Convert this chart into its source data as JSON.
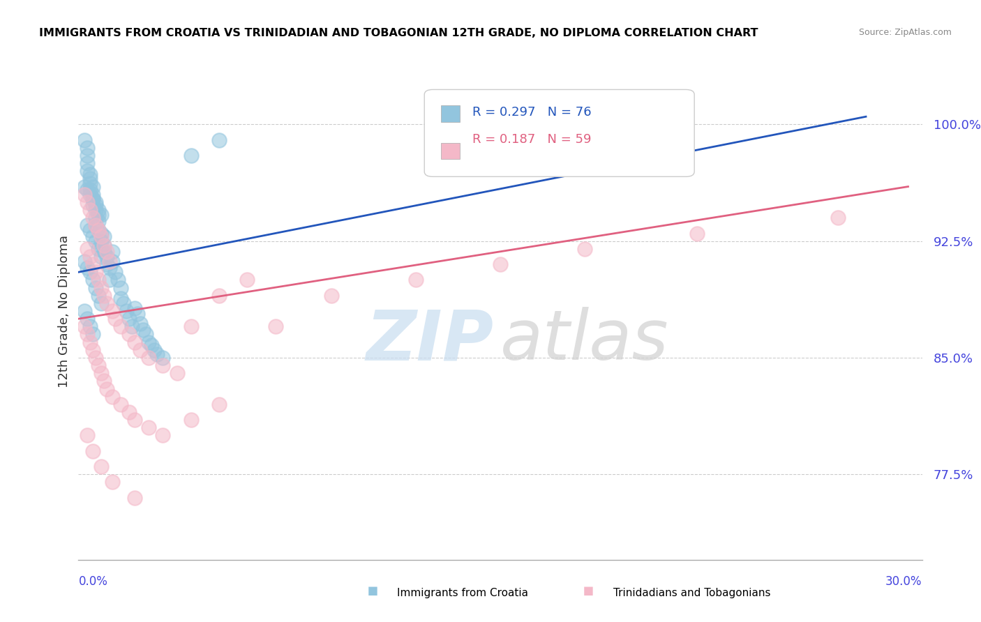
{
  "title": "IMMIGRANTS FROM CROATIA VS TRINIDADIAN AND TOBAGONIAN 12TH GRADE, NO DIPLOMA CORRELATION CHART",
  "source": "Source: ZipAtlas.com",
  "ylabel": "12th Grade, No Diploma",
  "ytick_labels": [
    "77.5%",
    "85.0%",
    "92.5%",
    "100.0%"
  ],
  "ytick_values": [
    0.775,
    0.85,
    0.925,
    1.0
  ],
  "xlim": [
    0.0,
    0.3
  ],
  "ylim": [
    0.72,
    1.04
  ],
  "legend_line1": "R = 0.297   N = 76",
  "legend_line2": "R = 0.187   N = 59",
  "blue_color": "#92c5de",
  "pink_color": "#f4b8c8",
  "blue_line_color": "#2255bb",
  "pink_line_color": "#e06080",
  "blue_scatter_x": [
    0.002,
    0.003,
    0.003,
    0.003,
    0.003,
    0.004,
    0.004,
    0.004,
    0.004,
    0.005,
    0.005,
    0.005,
    0.005,
    0.006,
    0.006,
    0.006,
    0.006,
    0.007,
    0.007,
    0.007,
    0.008,
    0.008,
    0.008,
    0.009,
    0.009,
    0.009,
    0.01,
    0.01,
    0.011,
    0.011,
    0.012,
    0.012,
    0.013,
    0.014,
    0.015,
    0.015,
    0.016,
    0.017,
    0.018,
    0.019,
    0.02,
    0.021,
    0.022,
    0.023,
    0.024,
    0.025,
    0.026,
    0.027,
    0.028,
    0.03,
    0.002,
    0.003,
    0.004,
    0.005,
    0.006,
    0.007,
    0.008,
    0.003,
    0.004,
    0.005,
    0.006,
    0.007,
    0.008,
    0.002,
    0.003,
    0.004,
    0.005,
    0.006,
    0.007,
    0.008,
    0.002,
    0.003,
    0.004,
    0.005,
    0.04,
    0.05
  ],
  "blue_scatter_y": [
    0.99,
    0.985,
    0.98,
    0.975,
    0.97,
    0.968,
    0.965,
    0.962,
    0.958,
    0.96,
    0.955,
    0.952,
    0.948,
    0.95,
    0.945,
    0.94,
    0.935,
    0.942,
    0.938,
    0.932,
    0.93,
    0.925,
    0.92,
    0.928,
    0.922,
    0.918,
    0.915,
    0.91,
    0.908,
    0.9,
    0.918,
    0.912,
    0.905,
    0.9,
    0.895,
    0.888,
    0.885,
    0.88,
    0.875,
    0.87,
    0.882,
    0.878,
    0.872,
    0.868,
    0.865,
    0.86,
    0.858,
    0.855,
    0.852,
    0.85,
    0.96,
    0.958,
    0.955,
    0.952,
    0.948,
    0.945,
    0.942,
    0.935,
    0.932,
    0.928,
    0.925,
    0.92,
    0.915,
    0.912,
    0.908,
    0.905,
    0.9,
    0.895,
    0.89,
    0.885,
    0.88,
    0.875,
    0.87,
    0.865,
    0.98,
    0.99
  ],
  "pink_scatter_x": [
    0.002,
    0.003,
    0.004,
    0.005,
    0.006,
    0.007,
    0.008,
    0.009,
    0.01,
    0.011,
    0.003,
    0.004,
    0.005,
    0.006,
    0.007,
    0.008,
    0.009,
    0.01,
    0.012,
    0.013,
    0.015,
    0.018,
    0.02,
    0.022,
    0.025,
    0.03,
    0.035,
    0.04,
    0.05,
    0.06,
    0.002,
    0.003,
    0.004,
    0.005,
    0.006,
    0.007,
    0.008,
    0.009,
    0.01,
    0.012,
    0.015,
    0.018,
    0.02,
    0.025,
    0.03,
    0.04,
    0.05,
    0.07,
    0.09,
    0.12,
    0.15,
    0.18,
    0.22,
    0.27,
    0.003,
    0.005,
    0.008,
    0.012,
    0.02
  ],
  "pink_scatter_y": [
    0.955,
    0.95,
    0.945,
    0.94,
    0.935,
    0.932,
    0.928,
    0.922,
    0.918,
    0.912,
    0.92,
    0.915,
    0.91,
    0.905,
    0.9,
    0.895,
    0.89,
    0.885,
    0.88,
    0.875,
    0.87,
    0.865,
    0.86,
    0.855,
    0.85,
    0.845,
    0.84,
    0.87,
    0.89,
    0.9,
    0.87,
    0.865,
    0.86,
    0.855,
    0.85,
    0.845,
    0.84,
    0.835,
    0.83,
    0.825,
    0.82,
    0.815,
    0.81,
    0.805,
    0.8,
    0.81,
    0.82,
    0.87,
    0.89,
    0.9,
    0.91,
    0.92,
    0.93,
    0.94,
    0.8,
    0.79,
    0.78,
    0.77,
    0.76
  ],
  "blue_trend_x": [
    0.0,
    0.28
  ],
  "blue_trend_y": [
    0.905,
    1.005
  ],
  "pink_trend_x": [
    0.0,
    0.295
  ],
  "pink_trend_y": [
    0.875,
    0.96
  ],
  "grid_color": "#cccccc",
  "tick_color": "#4444dd",
  "xlabel_color": "#4444dd",
  "legend_blue_color": "#92c5de",
  "legend_pink_color": "#f4b8c8",
  "watermark_zip_color": "#c8ddf0",
  "watermark_atlas_color": "#d0d0d0"
}
